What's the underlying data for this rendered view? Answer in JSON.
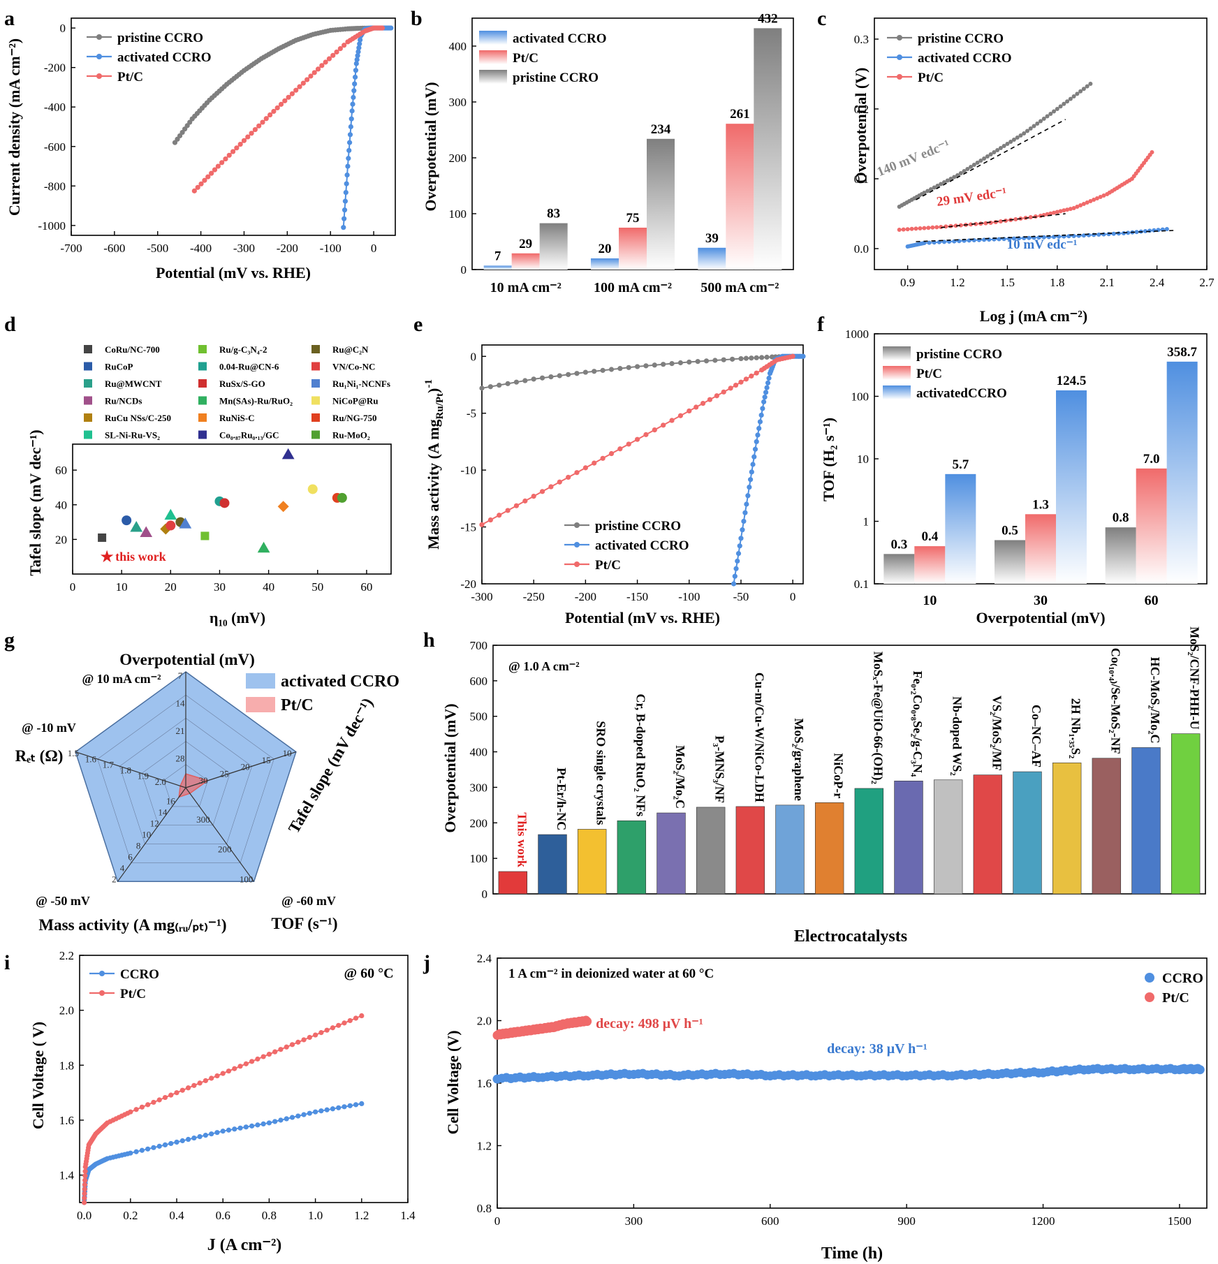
{
  "chart_data": [
    {
      "panel": "a",
      "type": "line",
      "xlabel": "Potential (mV vs. RHE)",
      "ylabel": "Current density (mA cm⁻²)",
      "xlim": [
        -700,
        50
      ],
      "ylim": [
        -1050,
        50
      ],
      "xticks": [
        -700,
        -600,
        -500,
        -400,
        -300,
        -200,
        -100,
        0
      ],
      "yticks": [
        -1000,
        -800,
        -600,
        -400,
        -200,
        0
      ],
      "legend_position": "top-left",
      "series": [
        {
          "name": "pristine CCRO",
          "color": "#7f7f7f",
          "x": [
            -460,
            -420,
            -380,
            -340,
            -300,
            -260,
            -220,
            -180,
            -140,
            -100,
            -60,
            -30,
            0
          ],
          "y": [
            -580,
            -460,
            -365,
            -285,
            -215,
            -155,
            -105,
            -62,
            -32,
            -12,
            -4,
            -1,
            0
          ]
        },
        {
          "name": "activated CCRO",
          "color": "#4f8fe0",
          "x": [
            -70,
            -60,
            -50,
            -40,
            -30,
            -20,
            -10,
            0,
            20,
            40
          ],
          "y": [
            -1010,
            -700,
            -420,
            -180,
            -40,
            -5,
            -1,
            0,
            0,
            0
          ]
        },
        {
          "name": "Pt/C",
          "color": "#f06a6a",
          "x": [
            -415,
            -360,
            -300,
            -240,
            -180,
            -120,
            -60,
            -20,
            0,
            20
          ],
          "y": [
            -825,
            -700,
            -570,
            -440,
            -315,
            -190,
            -70,
            -15,
            0,
            0
          ]
        }
      ]
    },
    {
      "panel": "b",
      "type": "bar",
      "ylabel": "Overpotential (mV)",
      "categories": [
        "10 mA cm⁻²",
        "100 mA cm⁻²",
        "500 mA cm⁻²"
      ],
      "ylim": [
        0,
        450
      ],
      "yticks": [
        0,
        100,
        200,
        300,
        400
      ],
      "legend_position": "top-left",
      "series": [
        {
          "name": "activated CCRO",
          "color": "#4f8fe0",
          "values": [
            7,
            20,
            39
          ]
        },
        {
          "name": "Pt/C",
          "color": "#f06a6a",
          "values": [
            29,
            75,
            261
          ]
        },
        {
          "name": "pristine CCRO",
          "color": "#7f7f7f",
          "values": [
            83,
            234,
            432
          ]
        }
      ]
    },
    {
      "panel": "c",
      "type": "line",
      "xlabel": "Log j (mA cm⁻²)",
      "ylabel": "Overpotential (V)",
      "xlim": [
        0.7,
        2.7
      ],
      "ylim": [
        -0.03,
        0.33
      ],
      "xticks": [
        0.9,
        1.2,
        1.5,
        1.8,
        2.1,
        2.4,
        2.7
      ],
      "yticks": [
        0.0,
        0.1,
        0.2,
        0.3
      ],
      "legend_position": "top-left",
      "annotations": [
        "140 mV edc⁻¹",
        "29 mV edc⁻¹",
        "10 mV edc⁻¹"
      ],
      "series": [
        {
          "name": "pristine CCRO",
          "color": "#7f7f7f",
          "x": [
            0.85,
            1.0,
            1.2,
            1.4,
            1.6,
            1.8,
            2.0
          ],
          "y": [
            0.06,
            0.08,
            0.105,
            0.135,
            0.165,
            0.2,
            0.236
          ]
        },
        {
          "name": "activated CCRO",
          "color": "#4f8fe0",
          "x": [
            0.9,
            1.0,
            1.3,
            1.6,
            1.9,
            2.2,
            2.46
          ],
          "y": [
            0.003,
            0.008,
            0.012,
            0.015,
            0.018,
            0.022,
            0.028
          ]
        },
        {
          "name": "Pt/C",
          "color": "#f06a6a",
          "x": [
            0.85,
            1.1,
            1.4,
            1.7,
            1.9,
            2.1,
            2.25,
            2.37
          ],
          "y": [
            0.027,
            0.031,
            0.037,
            0.047,
            0.058,
            0.078,
            0.1,
            0.138
          ]
        }
      ]
    },
    {
      "panel": "d",
      "type": "scatter",
      "xlabel": "η₁₀ (mV)",
      "ylabel": "Tafel slope (mV dec⁻¹)",
      "xlim": [
        0,
        65
      ],
      "ylim": [
        0,
        75
      ],
      "xticks": [
        0,
        10,
        20,
        30,
        40,
        50,
        60
      ],
      "yticks": [
        20,
        40,
        60
      ],
      "annotation": "this work",
      "points": [
        {
          "name": "CoRu/NC-700",
          "x": 6,
          "y": 21,
          "color": "#444444",
          "marker": "square-half"
        },
        {
          "name": "RuCoP",
          "x": 11,
          "y": 31,
          "color": "#2b5ba8",
          "marker": "circle"
        },
        {
          "name": "Ru@MWCNT",
          "x": 13,
          "y": 27,
          "color": "#2aa08a",
          "marker": "triangle"
        },
        {
          "name": "Ru/NCDs",
          "x": 15,
          "y": 24,
          "color": "#a0508a",
          "marker": "triangle-down"
        },
        {
          "name": "RuCu NSs/C-250",
          "x": 19,
          "y": 26,
          "color": "#b08010",
          "marker": "diamond"
        },
        {
          "name": "SL-Ni-Ru-VS₂",
          "x": 20,
          "y": 34,
          "color": "#20c090",
          "marker": "triangle-left"
        },
        {
          "name": "Ru/g-C₃N₄-2",
          "x": 27,
          "y": 22,
          "color": "#70c030",
          "marker": "square"
        },
        {
          "name": "0.04-Ru@CN-6",
          "x": 30,
          "y": 42,
          "color": "#20a090",
          "marker": "circle-half"
        },
        {
          "name": "RuSx/S-GO",
          "x": 31,
          "y": 41,
          "color": "#d03030",
          "marker": "hexagon-half"
        },
        {
          "name": "Mn(SAs)-Ru/RuO₂",
          "x": 39,
          "y": 15,
          "color": "#30b060",
          "marker": "triangle-open"
        },
        {
          "name": "RuNiS-C",
          "x": 43,
          "y": 39,
          "color": "#f08020",
          "marker": "diamond-half"
        },
        {
          "name": "Co₀.₈₇Ru₀.₁₃/GC",
          "x": 44,
          "y": 69,
          "color": "#303090",
          "marker": "triangle-down-open"
        },
        {
          "name": "Ru@C₂N",
          "x": 22,
          "y": 30,
          "color": "#6a6020",
          "marker": "hexagon"
        },
        {
          "name": "VN/Co-NC",
          "x": 20,
          "y": 28,
          "color": "#e04040",
          "marker": "pentagon"
        },
        {
          "name": "Ru₁Ni₁-NCNFs",
          "x": 23,
          "y": 29,
          "color": "#5080d0",
          "marker": "triangle-right-open"
        },
        {
          "name": "NiCoP@Ru",
          "x": 49,
          "y": 49,
          "color": "#f0e060",
          "marker": "circle"
        },
        {
          "name": "Ru/NG-750",
          "x": 54,
          "y": 44,
          "color": "#e04020",
          "marker": "pentagon-open"
        },
        {
          "name": "Ru-MoO₂",
          "x": 55,
          "y": 44,
          "color": "#50a030",
          "marker": "hexagon-half"
        },
        {
          "name": "this work",
          "x": 7,
          "y": 10,
          "color": "#e02020",
          "marker": "star"
        }
      ]
    },
    {
      "panel": "e",
      "type": "line",
      "xlabel": "Potential (mV vs. RHE)",
      "ylabel": "Mass activity (A mg₍ᵣᵤ/ₚₜ₎⁻¹)",
      "ylabel_text": "Mass activity (A mg",
      "ylabel_sub": "Ru/Pt",
      "ylabel_end": ")",
      "ylabel_sup": "-1",
      "xlim": [
        -300,
        10
      ],
      "ylim": [
        -20,
        1
      ],
      "xticks": [
        -300,
        -250,
        -200,
        -150,
        -100,
        -50,
        0
      ],
      "yticks": [
        -20,
        -15,
        -10,
        -5,
        0
      ],
      "legend_position": "bottom-center",
      "series": [
        {
          "name": "pristine CCRO",
          "color": "#7f7f7f",
          "x": [
            -300,
            -250,
            -200,
            -150,
            -100,
            -50,
            -20,
            0
          ],
          "y": [
            -2.8,
            -2.0,
            -1.4,
            -0.9,
            -0.5,
            -0.2,
            -0.05,
            0
          ]
        },
        {
          "name": "activated CCRO",
          "color": "#4f8fe0",
          "x": [
            -57,
            -50,
            -42,
            -35,
            -28,
            -22,
            -17,
            -10,
            0,
            10
          ],
          "y": [
            -20,
            -16,
            -11.5,
            -7.5,
            -4,
            -1.5,
            -0.3,
            0,
            0,
            0
          ]
        },
        {
          "name": "Pt/C",
          "color": "#f06a6a",
          "x": [
            -300,
            -250,
            -200,
            -150,
            -100,
            -60,
            -30,
            -15,
            0
          ],
          "y": [
            -14.8,
            -12.3,
            -9.8,
            -7.3,
            -4.8,
            -2.8,
            -1.2,
            -0.3,
            0
          ]
        }
      ]
    },
    {
      "panel": "f",
      "type": "bar",
      "yscale": "log",
      "xlabel": "Overpotential (mV)",
      "ylabel": "TOF (H₂ s⁻¹)",
      "categories": [
        "10",
        "30",
        "60"
      ],
      "ylim": [
        0.1,
        1000
      ],
      "yticks": [
        0.1,
        1,
        10,
        100,
        1000
      ],
      "legend_position": "top-left",
      "series": [
        {
          "name": "pristine CCRO",
          "color": "#7f7f7f",
          "values": [
            0.3,
            0.5,
            0.8
          ],
          "labels": [
            "0.3",
            "0.5",
            "0.8"
          ]
        },
        {
          "name": "Pt/C",
          "color": "#f06a6a",
          "values": [
            0.4,
            1.3,
            7.0
          ],
          "labels": [
            "0.4",
            "1.3",
            "7.0"
          ]
        },
        {
          "name": "activatedCCRO",
          "color": "#4f8fe0",
          "values": [
            5.7,
            124.5,
            358.7
          ],
          "labels": [
            "5.7",
            "124.5",
            "358.7"
          ]
        }
      ]
    },
    {
      "panel": "g",
      "type": "radar",
      "axes": [
        {
          "label": "Overpotential (mV)",
          "condition": "@ 10 mA cm⁻²",
          "ticks": [
            "7",
            "14",
            "21",
            "28"
          ]
        },
        {
          "label": "Tafel slope (mV dec⁻¹)",
          "condition": "",
          "ticks": [
            "10",
            "15",
            "20",
            "25",
            "30"
          ]
        },
        {
          "label": "TOF (s⁻¹)",
          "condition": "@ -60 mV",
          "ticks": [
            "100",
            "200",
            "300"
          ]
        },
        {
          "label": "Mass activity (A mg₍ᵣᵤ/ₚₜ₎⁻¹)",
          "condition": "@ -50 mV",
          "ticks": [
            "2",
            "4",
            "6",
            "8",
            "10",
            "12",
            "14",
            "16"
          ]
        },
        {
          "label": "Rₑₜ (Ω)",
          "condition": "@ -10 mV",
          "ticks": [
            "1.5",
            "1.6",
            "1.7",
            "1.8",
            "1.9",
            "2.0"
          ]
        }
      ],
      "series": [
        {
          "name": "activated CCRO",
          "color": "#4f8fe0",
          "values": [
            1.0,
            1.0,
            1.0,
            1.0,
            1.0
          ]
        },
        {
          "name": "Pt/C",
          "color": "#f06a6a",
          "values": [
            0.12,
            0.2,
            0.06,
            0.1,
            0.05
          ]
        }
      ]
    },
    {
      "panel": "h",
      "type": "bar",
      "xlabel": "Electrocatalysts",
      "ylabel": "Overpotential (mV)",
      "annotation": "@ 1.0 A cm⁻²",
      "ylim": [
        0,
        700
      ],
      "yticks": [
        0,
        100,
        200,
        300,
        400,
        500,
        600,
        700
      ],
      "categories": [
        "This work",
        "Pt-Er/h-NC",
        "SRO single crystals",
        "Cr, B-doped RuO₂ NFs",
        "MoS₂/Mo₂C",
        "P₃-MNS₃/NF",
        "Cu-m/Cu-W/NiCo-LDH",
        "MoS₂/graphene",
        "NiCoP-r",
        "MoSₓ-Fe@UiO-66-(OH)₂",
        "Fe₀.₂Co₀.₈Se₂/g-C₃N₄",
        "Nb-doped WS₂",
        "VS₂/MoS₂/MF",
        "Co–NC–AF",
        "2H Nb₁.₃₅S₂",
        "Co₍₁₀.₄₎/Se-MoS₂-NF",
        "HC-MoS₂/Mo₂C",
        "MoS₂/CNF-PHH-U"
      ],
      "values": [
        63,
        167,
        182,
        206,
        228,
        244,
        246,
        250,
        257,
        297,
        318,
        321,
        335,
        344,
        369,
        382,
        412,
        451
      ],
      "colors": [
        "#e23a3a",
        "#2e5f9a",
        "#f3c030",
        "#2ea06a",
        "#7a70b0",
        "#8a8a8a",
        "#e04848",
        "#6fa3d8",
        "#e08030",
        "#20a080",
        "#6a6ab0",
        "#c0c0c0",
        "#e04848",
        "#4aa0c0",
        "#e8c040",
        "#9a6060",
        "#4a7ac8",
        "#70d040"
      ]
    },
    {
      "panel": "i",
      "type": "line",
      "xlabel": "J (A cm⁻²)",
      "ylabel": "Cell Voltage ( V)",
      "annotation": "@ 60 °C",
      "xlim": [
        -0.02,
        1.4
      ],
      "ylim": [
        1.3,
        2.2
      ],
      "xticks": [
        0.0,
        0.2,
        0.4,
        0.6,
        0.8,
        1.0,
        1.2,
        1.4
      ],
      "yticks": [
        1.4,
        1.6,
        1.8,
        2.0,
        2.2
      ],
      "legend_position": "top-left",
      "series": [
        {
          "name": "CCRO",
          "color": "#4f8fe0",
          "x": [
            0.0,
            0.005,
            0.02,
            0.05,
            0.1,
            0.2,
            0.4,
            0.6,
            0.8,
            1.0,
            1.2
          ],
          "y": [
            1.3,
            1.38,
            1.42,
            1.44,
            1.46,
            1.48,
            1.52,
            1.56,
            1.59,
            1.63,
            1.66
          ]
        },
        {
          "name": "Pt/C",
          "color": "#f06a6a",
          "x": [
            0.0,
            0.005,
            0.02,
            0.05,
            0.1,
            0.2,
            0.4,
            0.6,
            0.8,
            1.0,
            1.2
          ],
          "y": [
            1.3,
            1.43,
            1.51,
            1.55,
            1.59,
            1.63,
            1.7,
            1.77,
            1.84,
            1.91,
            1.98
          ]
        }
      ]
    },
    {
      "panel": "j",
      "type": "scatter",
      "title": "Electrocatalysts",
      "xlabel": "Time (h)",
      "ylabel": "Cell Voltage (V)",
      "annotation": "1 A cm⁻²  in  deionized water at 60 °C",
      "xlim": [
        0,
        1560
      ],
      "ylim": [
        0.8,
        2.4
      ],
      "xticks": [
        0,
        300,
        600,
        900,
        1200,
        1500
      ],
      "yticks": [
        0.8,
        1.2,
        1.6,
        2.0,
        2.4
      ],
      "legend_position": "top-right",
      "series": [
        {
          "name": "CCRO",
          "color": "#4f8fe0",
          "decay_label": "decay: 38 μV h⁻¹",
          "x": [
            0,
            100,
            200,
            300,
            400,
            500,
            600,
            700,
            800,
            900,
            1000,
            1100,
            1200,
            1300,
            1400,
            1500,
            1550
          ],
          "y": [
            1.63,
            1.64,
            1.65,
            1.66,
            1.65,
            1.66,
            1.65,
            1.65,
            1.65,
            1.65,
            1.65,
            1.66,
            1.67,
            1.69,
            1.69,
            1.69,
            1.69
          ]
        },
        {
          "name": "Pt/C",
          "color": "#f06a6a",
          "decay_label": "decay: 498 μV h⁻¹",
          "x": [
            0,
            25,
            50,
            75,
            100,
            125,
            150,
            175,
            200
          ],
          "y": [
            1.91,
            1.92,
            1.93,
            1.94,
            1.95,
            1.96,
            1.98,
            1.99,
            2.0
          ]
        }
      ]
    }
  ],
  "panel_letters": [
    "a",
    "b",
    "c",
    "d",
    "e",
    "f",
    "g",
    "h",
    "i",
    "j"
  ]
}
